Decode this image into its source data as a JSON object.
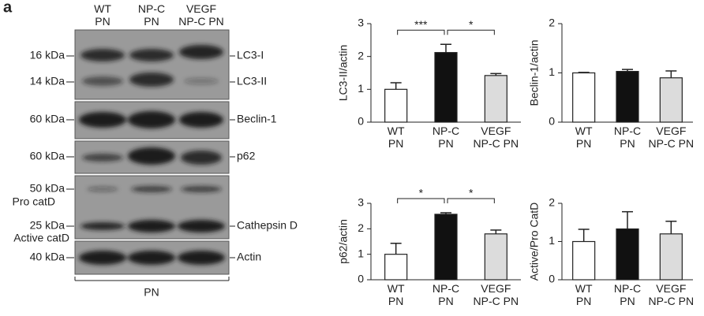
{
  "blot": {
    "panel_label": "a",
    "lanes": [
      "WT\nPN",
      "NP-C\nPN",
      "VEGF\nNP-C PN"
    ],
    "markers": [
      "16 kDa",
      "14 kDa",
      "60 kDa",
      "60 kDa",
      "50 kDa",
      "Pro catD",
      "25 kDa",
      "Active catD",
      "40 kDa"
    ],
    "bands": [
      "LC3-I",
      "LC3-II",
      "Beclin-1",
      "p62",
      "Cathepsin D",
      "Actin"
    ],
    "footer": "PN"
  },
  "chart_data": [
    {
      "type": "bar",
      "y_label": "LC3-II/actin",
      "categories": [
        "WT\nPN",
        "NP-C\nPN",
        "VEGF\nNP-C PN"
      ],
      "values": [
        1.0,
        2.12,
        1.42
      ],
      "errors": [
        0.2,
        0.25,
        0.06
      ],
      "colors": [
        "#ffffff",
        "#111111",
        "#dcdcdc"
      ],
      "ylim": [
        0,
        3
      ],
      "yticks": [
        0,
        1,
        2,
        3
      ],
      "annotations": [
        {
          "text": "***",
          "from": 0,
          "to": 1
        },
        {
          "text": "*",
          "from": 1,
          "to": 2
        }
      ]
    },
    {
      "type": "bar",
      "y_label": "Beclin-1/actin",
      "categories": [
        "WT\nPN",
        "NP-C\nPN",
        "VEGF\nNP-C PN"
      ],
      "values": [
        1.0,
        1.03,
        0.9
      ],
      "errors": [
        0.01,
        0.04,
        0.14
      ],
      "colors": [
        "#ffffff",
        "#111111",
        "#dcdcdc"
      ],
      "ylim": [
        0,
        2
      ],
      "yticks": [
        0,
        1,
        2
      ]
    },
    {
      "type": "bar",
      "y_label": "p62/actin",
      "categories": [
        "WT\nPN",
        "NP-C\nPN",
        "VEGF\nNP-C PN"
      ],
      "values": [
        1.0,
        2.57,
        1.8
      ],
      "errors": [
        0.43,
        0.06,
        0.15
      ],
      "colors": [
        "#ffffff",
        "#111111",
        "#dcdcdc"
      ],
      "ylim": [
        0,
        3
      ],
      "yticks": [
        0,
        1,
        2,
        3
      ],
      "annotations": [
        {
          "text": "*",
          "from": 0,
          "to": 1
        },
        {
          "text": "*",
          "from": 1,
          "to": 2
        }
      ]
    },
    {
      "type": "bar",
      "y_label": "Active/Pro CatD",
      "categories": [
        "WT\nPN",
        "NP-C\nPN",
        "VEGF\nNP-C PN"
      ],
      "values": [
        1.0,
        1.33,
        1.2
      ],
      "errors": [
        0.32,
        0.45,
        0.33
      ],
      "colors": [
        "#ffffff",
        "#111111",
        "#dcdcdc"
      ],
      "ylim": [
        0,
        2
      ],
      "yticks": [
        0,
        1,
        2
      ]
    }
  ]
}
